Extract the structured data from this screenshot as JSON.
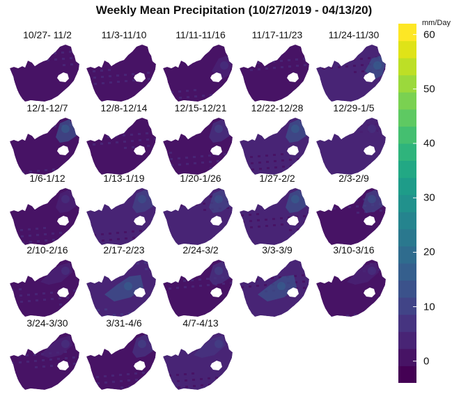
{
  "title": "Weekly Mean Precipitation (10/27/2019 - 04/13/20)",
  "colorbar": {
    "unit": "mm/Day",
    "min": -4,
    "max": 62,
    "ticks": [
      {
        "value": 0,
        "label": "0"
      },
      {
        "value": 10,
        "label": "10"
      },
      {
        "value": 20,
        "label": "20"
      },
      {
        "value": 30,
        "label": "30"
      },
      {
        "value": 40,
        "label": "40"
      },
      {
        "value": 50,
        "label": "50"
      },
      {
        "value": 60,
        "label": "60"
      }
    ],
    "colors": [
      "#440154",
      "#471365",
      "#482475",
      "#463480",
      "#414487",
      "#3b528b",
      "#355f8d",
      "#2f6c8e",
      "#2a788e",
      "#25848e",
      "#21918c",
      "#1e9c89",
      "#22a884",
      "#2fb47c",
      "#44bf70",
      "#5ec962",
      "#7ad151",
      "#9bd93c",
      "#bddf26",
      "#dfe318",
      "#fde725"
    ]
  },
  "panels": [
    {
      "label": "10/27- 11/2",
      "base_mm": 1,
      "wet_region": "none",
      "wet_mm": 1
    },
    {
      "label": "11/3-11/10",
      "base_mm": 2,
      "wet_region": "none",
      "wet_mm": 2
    },
    {
      "label": "11/11-11/16",
      "base_mm": 2,
      "wet_region": "east",
      "wet_mm": 4
    },
    {
      "label": "11/17-11/23",
      "base_mm": 1,
      "wet_region": "none",
      "wet_mm": 1
    },
    {
      "label": "11/24-11/30",
      "base_mm": 3,
      "wet_region": "east",
      "wet_mm": 14
    },
    {
      "label": "12/1-12/7",
      "base_mm": 2,
      "wet_region": "northeast",
      "wet_mm": 12
    },
    {
      "label": "12/8-12/14",
      "base_mm": 1,
      "wet_region": "none",
      "wet_mm": 1
    },
    {
      "label": "12/15-12/21",
      "base_mm": 2,
      "wet_region": "northeast",
      "wet_mm": 6
    },
    {
      "label": "12/22-12/28",
      "base_mm": 3,
      "wet_region": "northeast",
      "wet_mm": 12
    },
    {
      "label": "12/29-1/5",
      "base_mm": 3,
      "wet_region": "north",
      "wet_mm": 5
    },
    {
      "label": "1/6-1/12",
      "base_mm": 2,
      "wet_region": "northeast",
      "wet_mm": 5
    },
    {
      "label": "1/13-1/19",
      "base_mm": 3,
      "wet_region": "northeast",
      "wet_mm": 9
    },
    {
      "label": "1/20-1/26",
      "base_mm": 3,
      "wet_region": "northeast",
      "wet_mm": 11
    },
    {
      "label": "1/27-2/2",
      "base_mm": 3,
      "wet_region": "northeast",
      "wet_mm": 13
    },
    {
      "label": "2/3-2/9",
      "base_mm": 2,
      "wet_region": "northeast",
      "wet_mm": 10
    },
    {
      "label": "2/10-2/16",
      "base_mm": 2,
      "wet_region": "north",
      "wet_mm": 5
    },
    {
      "label": "2/17-2/23",
      "base_mm": 4,
      "wet_region": "center",
      "wet_mm": 14
    },
    {
      "label": "2/24-3/2",
      "base_mm": 2,
      "wet_region": "northeast",
      "wet_mm": 6
    },
    {
      "label": "3/3-3/9",
      "base_mm": 3,
      "wet_region": "center",
      "wet_mm": 13
    },
    {
      "label": "3/10-3/16",
      "base_mm": 2,
      "wet_region": "north",
      "wet_mm": 5
    },
    {
      "label": "3/24-3/30",
      "base_mm": 2,
      "wet_region": "north",
      "wet_mm": 4
    },
    {
      "label": "3/31-4/6",
      "base_mm": 2,
      "wet_region": "northeast",
      "wet_mm": 6
    },
    {
      "label": "4/7-4/13",
      "base_mm": 3,
      "wet_region": "north",
      "wet_mm": 6
    }
  ]
}
